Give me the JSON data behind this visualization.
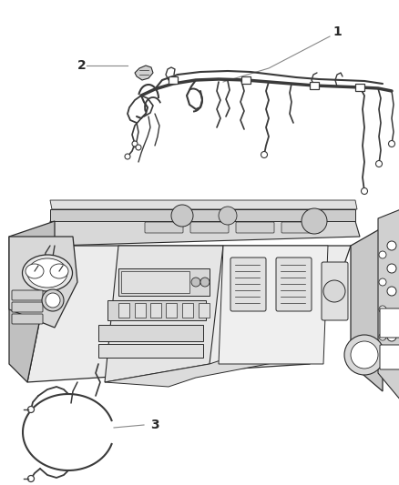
{
  "background_color": "#ffffff",
  "fig_width": 4.38,
  "fig_height": 5.33,
  "dpi": 100,
  "label_1": "1",
  "label_2": "2",
  "label_3": "3",
  "line_color": "#2a2a2a",
  "wiring_color": "#3a3a3a",
  "fill_light": "#e8e8e8",
  "fill_mid": "#d0d0d0",
  "fill_dark": "#b8b8b8",
  "annotation_fontsize": 10,
  "leader_color": "#888888"
}
